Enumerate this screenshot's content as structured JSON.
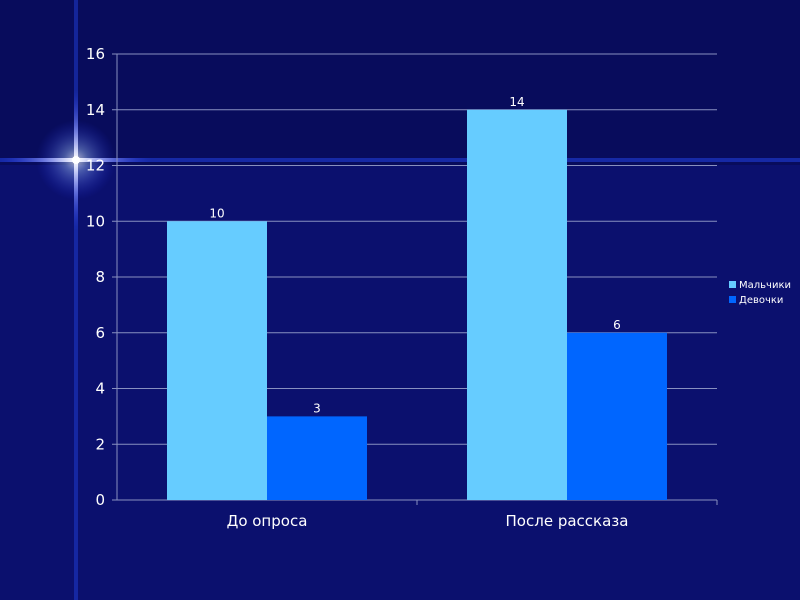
{
  "chart_data": {
    "type": "bar",
    "categories": [
      "До опроса",
      "После рассказа"
    ],
    "series": [
      {
        "name": "Мальчики",
        "values": [
          10,
          14
        ],
        "color": "#66ccff"
      },
      {
        "name": "Девочки",
        "values": [
          3,
          6
        ],
        "color": "#0066ff"
      }
    ],
    "ylim": [
      0,
      16
    ],
    "yticks": [
      0,
      2,
      4,
      6,
      8,
      10,
      12,
      14,
      16
    ],
    "grid": true,
    "legend": "right",
    "data_labels": true
  },
  "colors": {
    "background": "#0a0f6e",
    "gridline": "#8890c0",
    "text": "#ffffff"
  }
}
